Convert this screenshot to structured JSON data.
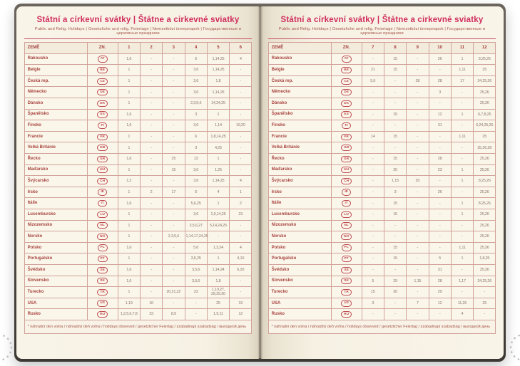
{
  "title": "Státní a církevní svátky | Štátne a cirkevné sviatky",
  "subtitle": "Public and Relig. Holidays | Gesetzliche und relig. Feiertage | Nemzetközi ünnepnapok | Государственные и церковные праздники",
  "footnote": "* náhradní den volna / náhradný deň voľna / holidays observed / gesetzlicher Feiertag / szabadnapi szabadság / выходной день",
  "columns": {
    "country": "ZEMĚ",
    "code": "ZN."
  },
  "colors": {
    "title": "#d02d5d",
    "page_background": "#f6f1e3",
    "table_border": "#d2a29a",
    "country_text": "#a8443f",
    "value_text": "#8e776a"
  },
  "left_page": {
    "months": [
      "1",
      "2",
      "3",
      "4",
      "5",
      "6"
    ],
    "rows": [
      {
        "country": "Rakousko",
        "code": "AT",
        "values": [
          "1,6",
          "-",
          "-",
          "6",
          "1,14,25",
          "4"
        ]
      },
      {
        "country": "Belgie",
        "code": "BE",
        "values": [
          "1",
          "-",
          "-",
          "3,6",
          "1,14,25",
          "-"
        ]
      },
      {
        "country": "Česká rep.",
        "code": "CZ",
        "values": [
          "1",
          "-",
          "-",
          "3,6",
          "1,8",
          "-"
        ]
      },
      {
        "country": "Německo",
        "code": "DE",
        "values": [
          "1",
          "-",
          "-",
          "3,6",
          "1,14,25",
          "-"
        ]
      },
      {
        "country": "Dánsko",
        "code": "DK",
        "values": [
          "1",
          "-",
          "-",
          "2,3,5,6",
          "14,24,25",
          "-"
        ]
      },
      {
        "country": "Španělsko",
        "code": "ES",
        "values": [
          "1,6",
          "-",
          "-",
          "3",
          "1",
          "-"
        ]
      },
      {
        "country": "Finsko",
        "code": "FI",
        "values": [
          "1,6",
          "-",
          "-",
          "3,6",
          "1,14",
          "19,20"
        ]
      },
      {
        "country": "Francie",
        "code": "FR",
        "values": [
          "1",
          "-",
          "-",
          "6",
          "1,8,14,25",
          "-"
        ]
      },
      {
        "country": "Velká Británie",
        "code": "GB",
        "values": [
          "1",
          "-",
          "-",
          "3",
          "4,25",
          "-"
        ]
      },
      {
        "country": "Řecko",
        "code": "GR",
        "values": [
          "1,6",
          "-",
          "25",
          "13",
          "1",
          "-"
        ]
      },
      {
        "country": "Maďarsko",
        "code": "HU",
        "values": [
          "1",
          "-",
          "15",
          "3,6",
          "1,25",
          "-"
        ]
      },
      {
        "country": "Švýcarsko",
        "code": "CH",
        "values": [
          "1,2",
          "-",
          "-",
          "3,6",
          "1,14,25",
          "4"
        ]
      },
      {
        "country": "Irsko",
        "code": "IE",
        "values": [
          "1",
          "2",
          "17",
          "6",
          "4",
          "1"
        ]
      },
      {
        "country": "Itálie",
        "code": "IT",
        "values": [
          "1,6",
          "-",
          "-",
          "5,6,25",
          "1",
          "2"
        ]
      },
      {
        "country": "Lucembursko",
        "code": "LU",
        "values": [
          "1",
          "-",
          "-",
          "3,6",
          "1,9,14,25",
          "23"
        ]
      },
      {
        "country": "Nizozemsko",
        "code": "NL",
        "values": [
          "1",
          "-",
          "-",
          "3,5,6,27",
          "5,14,24,25",
          "-"
        ]
      },
      {
        "country": "Norsko",
        "code": "NO",
        "values": [
          "1",
          "-",
          "2,3,5,6",
          "1,14,17,24,25",
          "-",
          "-"
        ]
      },
      {
        "country": "Polsko",
        "code": "PL",
        "values": [
          "1,6",
          "-",
          "-",
          "5,6",
          "1,3,24",
          "4"
        ]
      },
      {
        "country": "Portugalsko",
        "code": "PT",
        "values": [
          "1",
          "-",
          "-",
          "3,5,25",
          "1",
          "4,10"
        ]
      },
      {
        "country": "Švédsko",
        "code": "SE",
        "values": [
          "1,6",
          "-",
          "-",
          "3,5,6",
          "1,14,24",
          "6,20"
        ]
      },
      {
        "country": "Slovensko",
        "code": "SK",
        "values": [
          "1,6",
          "-",
          "-",
          "3,5,6",
          "1,8",
          "-"
        ]
      },
      {
        "country": "Turecko",
        "code": "TR",
        "values": [
          "1",
          "-",
          "20,21,22",
          "23",
          "1,19,27, 28,29,30",
          "-"
        ]
      },
      {
        "country": "USA",
        "code": "US",
        "values": [
          "1,19",
          "16",
          "-",
          "-",
          "25",
          "19"
        ]
      },
      {
        "country": "Rusko",
        "code": "RU",
        "values": [
          "1,2,5,6,7,8",
          "23",
          "8,9",
          "-",
          "1,9,11",
          "12"
        ]
      }
    ]
  },
  "right_page": {
    "months": [
      "7",
      "8",
      "9",
      "10",
      "11",
      "12"
    ],
    "rows": [
      {
        "country": "Rakousko",
        "code": "AT",
        "values": [
          "-",
          "15",
          "-",
          "26",
          "1",
          "8,25,26"
        ]
      },
      {
        "country": "Belgie",
        "code": "BE",
        "values": [
          "21",
          "15",
          "-",
          "-",
          "1,11",
          "25"
        ]
      },
      {
        "country": "Česká rep.",
        "code": "CZ",
        "values": [
          "5,6",
          "-",
          "28",
          "28",
          "17",
          "24,25,26"
        ]
      },
      {
        "country": "Německo",
        "code": "DE",
        "values": [
          "-",
          "-",
          "-",
          "3",
          "-",
          "25,26"
        ]
      },
      {
        "country": "Dánsko",
        "code": "DK",
        "values": [
          "-",
          "-",
          "-",
          "-",
          "-",
          "25,26"
        ]
      },
      {
        "country": "Španělsko",
        "code": "ES",
        "values": [
          "-",
          "15",
          "-",
          "12",
          "1",
          "6,7,8,25"
        ]
      },
      {
        "country": "Finsko",
        "code": "FI",
        "values": [
          "-",
          "-",
          "-",
          "31",
          "-",
          "6,24,25,26"
        ]
      },
      {
        "country": "Francie",
        "code": "FR",
        "values": [
          "14",
          "15",
          "-",
          "-",
          "1,11",
          "25"
        ]
      },
      {
        "country": "Velká Británie",
        "code": "GB",
        "values": [
          "-",
          "-",
          "-",
          "-",
          "-",
          "25,26,28"
        ]
      },
      {
        "country": "Řecko",
        "code": "GR",
        "values": [
          "-",
          "15",
          "-",
          "28",
          "-",
          "25,26"
        ]
      },
      {
        "country": "Maďarsko",
        "code": "HU",
        "values": [
          "-",
          "20",
          "-",
          "23",
          "1",
          "25,26"
        ]
      },
      {
        "country": "Švýcarsko",
        "code": "CH",
        "values": [
          "-",
          "1,15",
          "20",
          "-",
          "1",
          "8,25,26"
        ]
      },
      {
        "country": "Irsko",
        "code": "IE",
        "values": [
          "-",
          "3",
          "-",
          "26",
          "-",
          "25,26"
        ]
      },
      {
        "country": "Itálie",
        "code": "IT",
        "values": [
          "-",
          "15",
          "-",
          "-",
          "1",
          "8,25,26"
        ]
      },
      {
        "country": "Lucembursko",
        "code": "LU",
        "values": [
          "-",
          "15",
          "-",
          "-",
          "1",
          "25,26"
        ]
      },
      {
        "country": "Nizozemsko",
        "code": "NL",
        "values": [
          "-",
          "-",
          "-",
          "-",
          "-",
          "25,26"
        ]
      },
      {
        "country": "Norsko",
        "code": "NO",
        "values": [
          "-",
          "-",
          "-",
          "-",
          "-",
          "25,26"
        ]
      },
      {
        "country": "Polsko",
        "code": "PL",
        "values": [
          "-",
          "15",
          "-",
          "-",
          "1,11",
          "25,26"
        ]
      },
      {
        "country": "Portugalsko",
        "code": "PT",
        "values": [
          "-",
          "15",
          "-",
          "5",
          "1",
          "1,8,25"
        ]
      },
      {
        "country": "Švédsko",
        "code": "SE",
        "values": [
          "-",
          "-",
          "-",
          "31",
          "-",
          "25,26"
        ]
      },
      {
        "country": "Slovensko",
        "code": "SK",
        "values": [
          "5",
          "29",
          "1,15",
          "28",
          "1,17",
          "24,25,26"
        ]
      },
      {
        "country": "Turecko",
        "code": "TR",
        "values": [
          "15",
          "30",
          "-",
          "29",
          "-",
          "-"
        ]
      },
      {
        "country": "USA",
        "code": "US",
        "values": [
          "3",
          "-",
          "7",
          "12",
          "11,26",
          "25"
        ]
      },
      {
        "country": "Rusko",
        "code": "RU",
        "values": [
          "-",
          "-",
          "-",
          "-",
          "4",
          "-"
        ]
      }
    ]
  }
}
